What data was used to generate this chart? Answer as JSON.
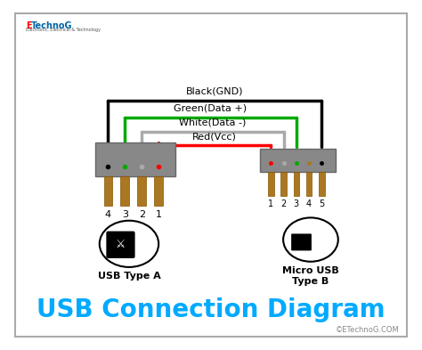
{
  "title": "USB Connection Diagram",
  "title_color": "#00AAFF",
  "title_fontsize": 20,
  "bg_color": "#FFFFFF",
  "border_color": "#CCCCCC",
  "logo_text": "ETechnoG",
  "logo_color_E": "#FF0000",
  "logo_color_rest": "#0000AA",
  "watermark": "©ETechnoG.COM",
  "cable_labels": [
    "Black(GND)",
    "Green(Data +)",
    "White(Data -)",
    "Red(Vcc)"
  ],
  "cable_colors": [
    "#000000",
    "#00AA00",
    "#AAAAAA",
    "#FF0000"
  ],
  "usb_a_pins": [
    "4",
    "3",
    "2",
    "1"
  ],
  "micro_usb_pins": [
    "1",
    "2",
    "3",
    "4",
    "5"
  ],
  "connector_color": "#888888",
  "pin_color": "#AA7722",
  "usb_a_label": "USB Type A",
  "micro_usb_label": "Micro USB\nType B"
}
